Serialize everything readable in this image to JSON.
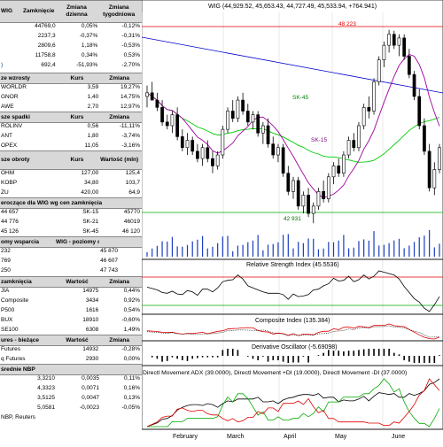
{
  "left_panel": {
    "index_table": {
      "headers": [
        "WIG",
        "Zamknięcie",
        "Zmiana dzienna",
        "Zmiana tygodniowa"
      ],
      "rows": [
        [
          "",
          "44769,0",
          "0,05%",
          "-0,12%"
        ],
        [
          "",
          "2237,3",
          "-0,37%",
          "-0,31%"
        ],
        [
          "",
          "2809,6",
          "1,18%",
          "-0,53%"
        ],
        [
          "",
          "11758,8",
          "0,34%",
          "0,53%"
        ],
        [
          ")",
          "692,4",
          "-51,93%",
          "-2,70%"
        ]
      ]
    },
    "gainers": {
      "headers": [
        "ze wzrosty",
        "Kurs",
        "Zmiana"
      ],
      "rows": [
        [
          "WORLDR",
          "3,59",
          "19,27%"
        ],
        [
          "GNOR",
          "1,40",
          "14,75%"
        ],
        [
          "AWE",
          "2,70",
          "12,97%"
        ]
      ]
    },
    "losers": {
      "headers": [
        "sze spadki",
        "Kurs",
        "Zmiana"
      ],
      "rows": [
        [
          "ROLINV",
          "0,56",
          "-11,11%"
        ],
        [
          "ANT",
          "1,80",
          "-3,74%"
        ],
        [
          "OPEX",
          "11,05",
          "-3,16%"
        ]
      ]
    },
    "turnover": {
      "headers": [
        "sze obroty",
        "Kurs",
        "Wartość (mln)"
      ],
      "rows": [
        [
          "OHM",
          "127,00",
          "125,4"
        ],
        [
          "KOBP",
          "34,80",
          "103,7"
        ],
        [
          "ZU",
          "420,00",
          "64,9"
        ]
      ]
    },
    "averages": {
      "header": "eroczące dla WIG wg cen zamknięcia",
      "rows": [
        [
          "44 657",
          "SK-15",
          "45770"
        ],
        [
          "44 776",
          "SK-21",
          "46019"
        ],
        [
          "45 126",
          "SK-45",
          "46 120"
        ]
      ]
    },
    "support": {
      "headers": [
        "omy wsparcia",
        "WIG - poziomy oporu"
      ],
      "rows": [
        [
          "232",
          "45 870"
        ],
        [
          "769",
          "46 607"
        ],
        [
          "250",
          "47 743"
        ]
      ]
    },
    "world": {
      "headers": [
        "zamknięcia",
        "Wartość",
        "Zmiana"
      ],
      "rows": [
        [
          "JIA",
          "14975",
          "0,44%"
        ],
        [
          "Composite",
          "3434",
          "0,92%"
        ],
        [
          "P500",
          "1616",
          "0,54%"
        ],
        [
          "BUX",
          "18910",
          "-0,60%"
        ],
        [
          "SE100",
          "6308",
          "1,49%"
        ]
      ]
    },
    "futures": {
      "headers": [
        "ures - bieżące",
        "Wartość",
        "Zmiana"
      ],
      "rows": [
        [
          "Futures",
          "14932",
          "-0,28%"
        ],
        [
          "q Futures",
          "2930",
          "0,00%"
        ]
      ]
    },
    "nbp": {
      "header": "średnie NBP",
      "rows": [
        [
          "",
          "3,3210",
          "0,0035",
          "0,11%"
        ],
        [
          "",
          "4,3323",
          "0,0071",
          "0,16%"
        ],
        [
          "",
          "3,5125",
          "0,0047",
          "0,13%"
        ],
        [
          "",
          "5,0581",
          "-0,0023",
          "-0,05%"
        ]
      ]
    },
    "source": "NBP, Reuters"
  },
  "chart_panel": {
    "main_title": "WIG (44,929.52, 45,653.43, 44,727.49, 45,533.94, +764.941)",
    "levels": {
      "top": "48 223",
      "bottom": "42 931"
    },
    "ma_labels": {
      "sk45": "SK-45",
      "sk15": "SK-15"
    },
    "rsi_title": "Relative Strength Index (45.5536)",
    "composite_title": "Composite Index (135.384)",
    "deriv_title": "Derivative Oscillator (-5.69098)",
    "dmi_title": "Directl Movement ADX (39.0000), Directl Movement +DI (19.0000), Directl Movement -DI (37.0000)",
    "months": [
      "February",
      "March",
      "April",
      "May",
      "June"
    ]
  },
  "chart_data": {
    "type": "candlestick",
    "title": "WIG (44,929.52, 45,653.43, 44,727.49, 45,533.94, +764.941)",
    "ylim": [
      42500,
      48700
    ],
    "levels": [
      48223,
      42931
    ],
    "months": [
      "February",
      "March",
      "April",
      "May",
      "June"
    ],
    "ohlc": [
      [
        46400,
        46700,
        46100,
        46500
      ],
      [
        46500,
        46800,
        46300,
        46300
      ],
      [
        46300,
        46500,
        46000,
        46100
      ],
      [
        46100,
        46300,
        45600,
        45700
      ],
      [
        45700,
        45900,
        45500,
        45600
      ],
      [
        45600,
        46000,
        45400,
        45900
      ],
      [
        45900,
        46100,
        45200,
        45300
      ],
      [
        45300,
        45500,
        44900,
        45000
      ],
      [
        45000,
        45400,
        44800,
        45200
      ],
      [
        45200,
        45300,
        44800,
        44900
      ],
      [
        44900,
        45100,
        44600,
        44700
      ],
      [
        44700,
        45100,
        44500,
        45000
      ],
      [
        45000,
        45200,
        44600,
        44700
      ],
      [
        44700,
        44900,
        44300,
        44500
      ],
      [
        44500,
        44900,
        44400,
        44800
      ],
      [
        44800,
        45600,
        44700,
        45500
      ],
      [
        45500,
        46100,
        45400,
        46000
      ],
      [
        46000,
        46300,
        45700,
        45800
      ],
      [
        45800,
        46400,
        45700,
        46300
      ],
      [
        46300,
        46500,
        45900,
        46000
      ],
      [
        46000,
        46200,
        45600,
        45700
      ],
      [
        45700,
        46000,
        45500,
        45900
      ],
      [
        45900,
        46000,
        45300,
        45400
      ],
      [
        45400,
        45700,
        45100,
        45600
      ],
      [
        45600,
        45800,
        45000,
        45100
      ],
      [
        45100,
        45300,
        44700,
        44800
      ],
      [
        44800,
        45100,
        44600,
        45000
      ],
      [
        45000,
        45100,
        44200,
        44300
      ],
      [
        44300,
        44500,
        43700,
        43800
      ],
      [
        43800,
        44200,
        43600,
        44100
      ],
      [
        44100,
        44200,
        43300,
        43400
      ],
      [
        43400,
        43800,
        43200,
        43700
      ],
      [
        43700,
        43900,
        43100,
        43200
      ],
      [
        43200,
        43500,
        42931,
        43400
      ],
      [
        43400,
        43900,
        43300,
        43800
      ],
      [
        43800,
        44100,
        43500,
        43600
      ],
      [
        43600,
        44300,
        43500,
        44200
      ],
      [
        44200,
        44600,
        44000,
        44500
      ],
      [
        44500,
        44700,
        44200,
        44300
      ],
      [
        44300,
        44900,
        44200,
        44800
      ],
      [
        44800,
        45300,
        44700,
        45200
      ],
      [
        45200,
        45400,
        44900,
        45000
      ],
      [
        45000,
        45700,
        44900,
        45600
      ],
      [
        45600,
        46200,
        45500,
        46100
      ],
      [
        46100,
        46400,
        45800,
        46000
      ],
      [
        46000,
        46900,
        45900,
        46800
      ],
      [
        46800,
        47500,
        46700,
        47400
      ],
      [
        47400,
        47900,
        47200,
        47800
      ],
      [
        47800,
        48223,
        47600,
        48100
      ],
      [
        48100,
        48200,
        47700,
        47800
      ],
      [
        47800,
        48100,
        47500,
        48000
      ],
      [
        48000,
        48100,
        47400,
        47500
      ],
      [
        47500,
        47700,
        46900,
        47000
      ],
      [
        47000,
        47100,
        46300,
        46400
      ],
      [
        46400,
        46600,
        45500,
        45600
      ],
      [
        45600,
        45800,
        44800,
        44900
      ],
      [
        44900,
        45100,
        43800,
        43900
      ],
      [
        43900,
        44600,
        43700,
        44400
      ],
      [
        44400,
        45100,
        44300,
        45000
      ]
    ]
  }
}
